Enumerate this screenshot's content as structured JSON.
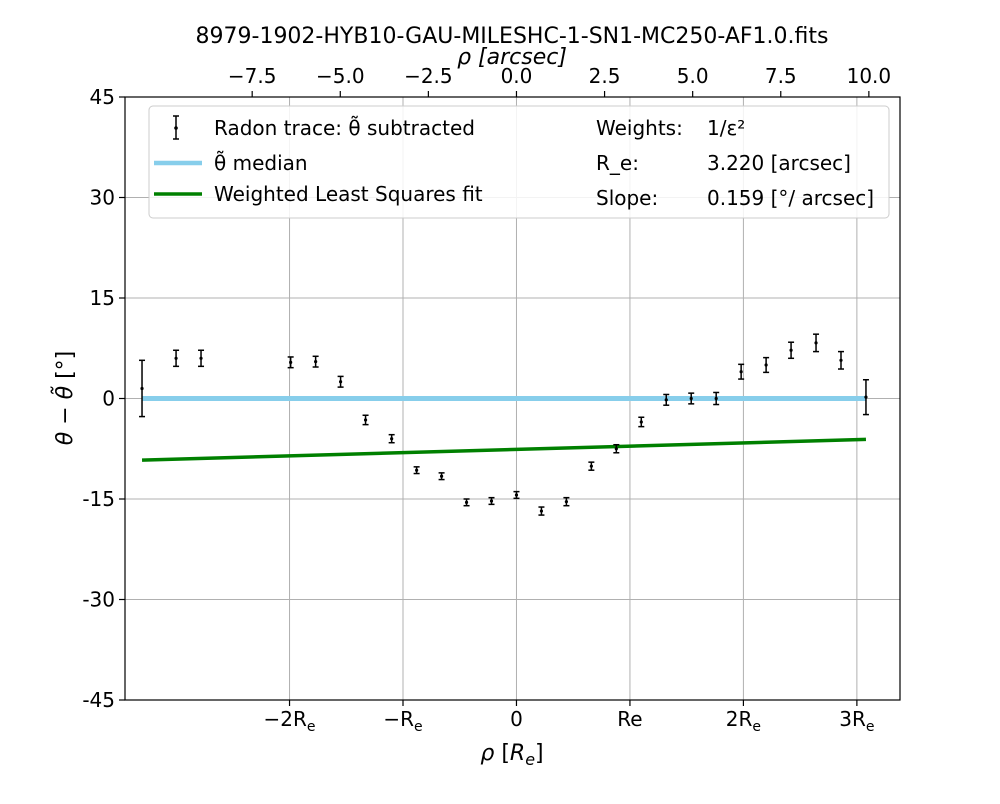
{
  "chart_data": {
    "type": "scatter",
    "title": "8979-1902-HYB10-GAU-MILESHC-1-SN1-MC250-AF1.0.fits",
    "xlabel": "ρ [R_e]",
    "ylabel": "θ − θ̃ [°]",
    "top_xlabel": "ρ [arcsec]",
    "xlim": [
      -3.45,
      3.38
    ],
    "ylim": [
      -45,
      45
    ],
    "grid": true,
    "legend_position": "top",
    "x_ticks": [
      {
        "value": -2,
        "label": "−2R",
        "sub": "e"
      },
      {
        "value": -1,
        "label": "−R",
        "sub": "e"
      },
      {
        "value": 0,
        "label": "0",
        "sub": ""
      },
      {
        "value": 1,
        "label": "Re",
        "sub": ""
      },
      {
        "value": 2,
        "label": "2R",
        "sub": "e"
      },
      {
        "value": 3,
        "label": "3R",
        "sub": "e"
      }
    ],
    "top_ticks": [
      {
        "value": -7.5,
        "label": "−7.5"
      },
      {
        "value": -5.0,
        "label": "−5.0"
      },
      {
        "value": -2.5,
        "label": "−2.5"
      },
      {
        "value": 0.0,
        "label": "0.0"
      },
      {
        "value": 2.5,
        "label": "2.5"
      },
      {
        "value": 5.0,
        "label": "5.0"
      },
      {
        "value": 7.5,
        "label": "7.5"
      },
      {
        "value": 10.0,
        "label": "10.0"
      }
    ],
    "y_ticks": [
      {
        "value": 45,
        "label": "45"
      },
      {
        "value": 30,
        "label": "30"
      },
      {
        "value": 15,
        "label": "15"
      },
      {
        "value": 0,
        "label": "0"
      },
      {
        "value": -15,
        "label": "-15"
      },
      {
        "value": -30,
        "label": "-30"
      },
      {
        "value": -45,
        "label": "-45"
      }
    ],
    "re_arcsec": 3.22,
    "series": [
      {
        "name": "Radon trace: θ̃ subtracted",
        "kind": "errorbar",
        "color": "#000000",
        "x": [
          -3.3,
          -3.0,
          -2.78,
          -1.99,
          -1.77,
          -1.55,
          -1.33,
          -1.1,
          -0.88,
          -0.66,
          -0.44,
          -0.22,
          0.0,
          0.22,
          0.44,
          0.66,
          0.88,
          1.1,
          1.32,
          1.54,
          1.76,
          1.98,
          2.2,
          2.42,
          2.64,
          2.86,
          3.08
        ],
        "y": [
          1.5,
          6.0,
          6.0,
          5.4,
          5.5,
          2.5,
          -3.2,
          -6.0,
          -10.7,
          -11.6,
          -15.5,
          -15.3,
          -14.4,
          -16.8,
          -15.4,
          -10.1,
          -7.5,
          -3.5,
          -0.2,
          0.0,
          0.0,
          4.0,
          5.0,
          7.2,
          8.3,
          5.7,
          0.2
        ],
        "yerr": [
          4.2,
          1.2,
          1.2,
          0.8,
          0.8,
          0.8,
          0.7,
          0.6,
          0.5,
          0.5,
          0.5,
          0.5,
          0.5,
          0.6,
          0.6,
          0.6,
          0.6,
          0.7,
          0.8,
          0.8,
          0.9,
          1.1,
          1.1,
          1.2,
          1.3,
          1.3,
          2.6
        ]
      },
      {
        "name": "θ̃ median",
        "kind": "line",
        "color": "#87ceeb",
        "x": [
          -3.3,
          3.08
        ],
        "y": [
          0.0,
          0.0
        ]
      },
      {
        "name": "Weighted Least Squares fit",
        "kind": "line",
        "color": "#008000",
        "x": [
          -3.3,
          3.08
        ],
        "y": [
          -9.2,
          -6.1
        ]
      }
    ],
    "annotations": [
      {
        "label": "Weights:",
        "value": "1/ε²"
      },
      {
        "label": "R_e:",
        "value": "3.220 [arcsec]"
      },
      {
        "label": "Slope:",
        "value": "0.159 [°/ arcsec]"
      }
    ]
  }
}
